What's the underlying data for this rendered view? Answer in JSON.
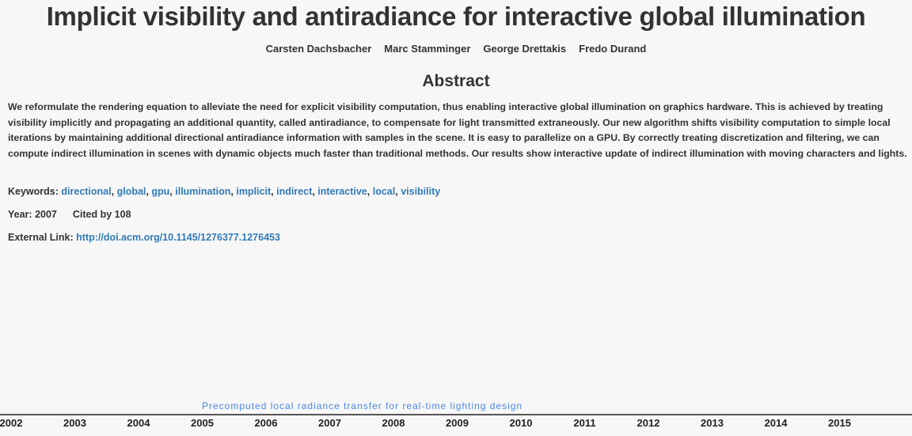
{
  "header": {
    "title": "Implicit visibility and antiradiance for interactive global illumination",
    "authors": [
      "Carsten Dachsbacher",
      "Marc Stamminger",
      "George Drettakis",
      "Fredo Durand"
    ]
  },
  "abstract": {
    "heading": "Abstract",
    "text": "We reformulate the rendering equation to alleviate the need for explicit visibility computation, thus enabling interactive global illumination on graphics hardware. This is achieved by treating visibility implicitly and propagating an additional quantity, called antiradiance, to compensate for light transmitted extraneously. Our new algorithm shifts visibility computation to simple local iterations by maintaining additional directional antiradiance information with samples in the scene. It is easy to parallelize on a GPU. By correctly treating discretization and filtering, we can compute indirect illumination in scenes with dynamic objects much faster than traditional methods. Our results show interactive update of indirect illumination with moving characters and lights."
  },
  "keywords": {
    "label": "Keywords:",
    "separator": ",",
    "items": [
      "directional",
      "global",
      "gpu",
      "illumination",
      "implicit",
      "indirect",
      "interactive",
      "local",
      "visibility"
    ]
  },
  "year": {
    "label": "Year:",
    "value": "2007"
  },
  "cited": "Cited by 108",
  "external_link": {
    "label": "External Link:",
    "url": "http://doi.acm.org/10.1145/1276377.1276453"
  },
  "timeline": {
    "years": [
      "2002",
      "2003",
      "2004",
      "2005",
      "2006",
      "2007",
      "2008",
      "2009",
      "2010",
      "2011",
      "2012",
      "2013",
      "2014",
      "2015"
    ],
    "papers": [
      "Precomputed local radiance transfer for real-time lighting design"
    ]
  }
}
